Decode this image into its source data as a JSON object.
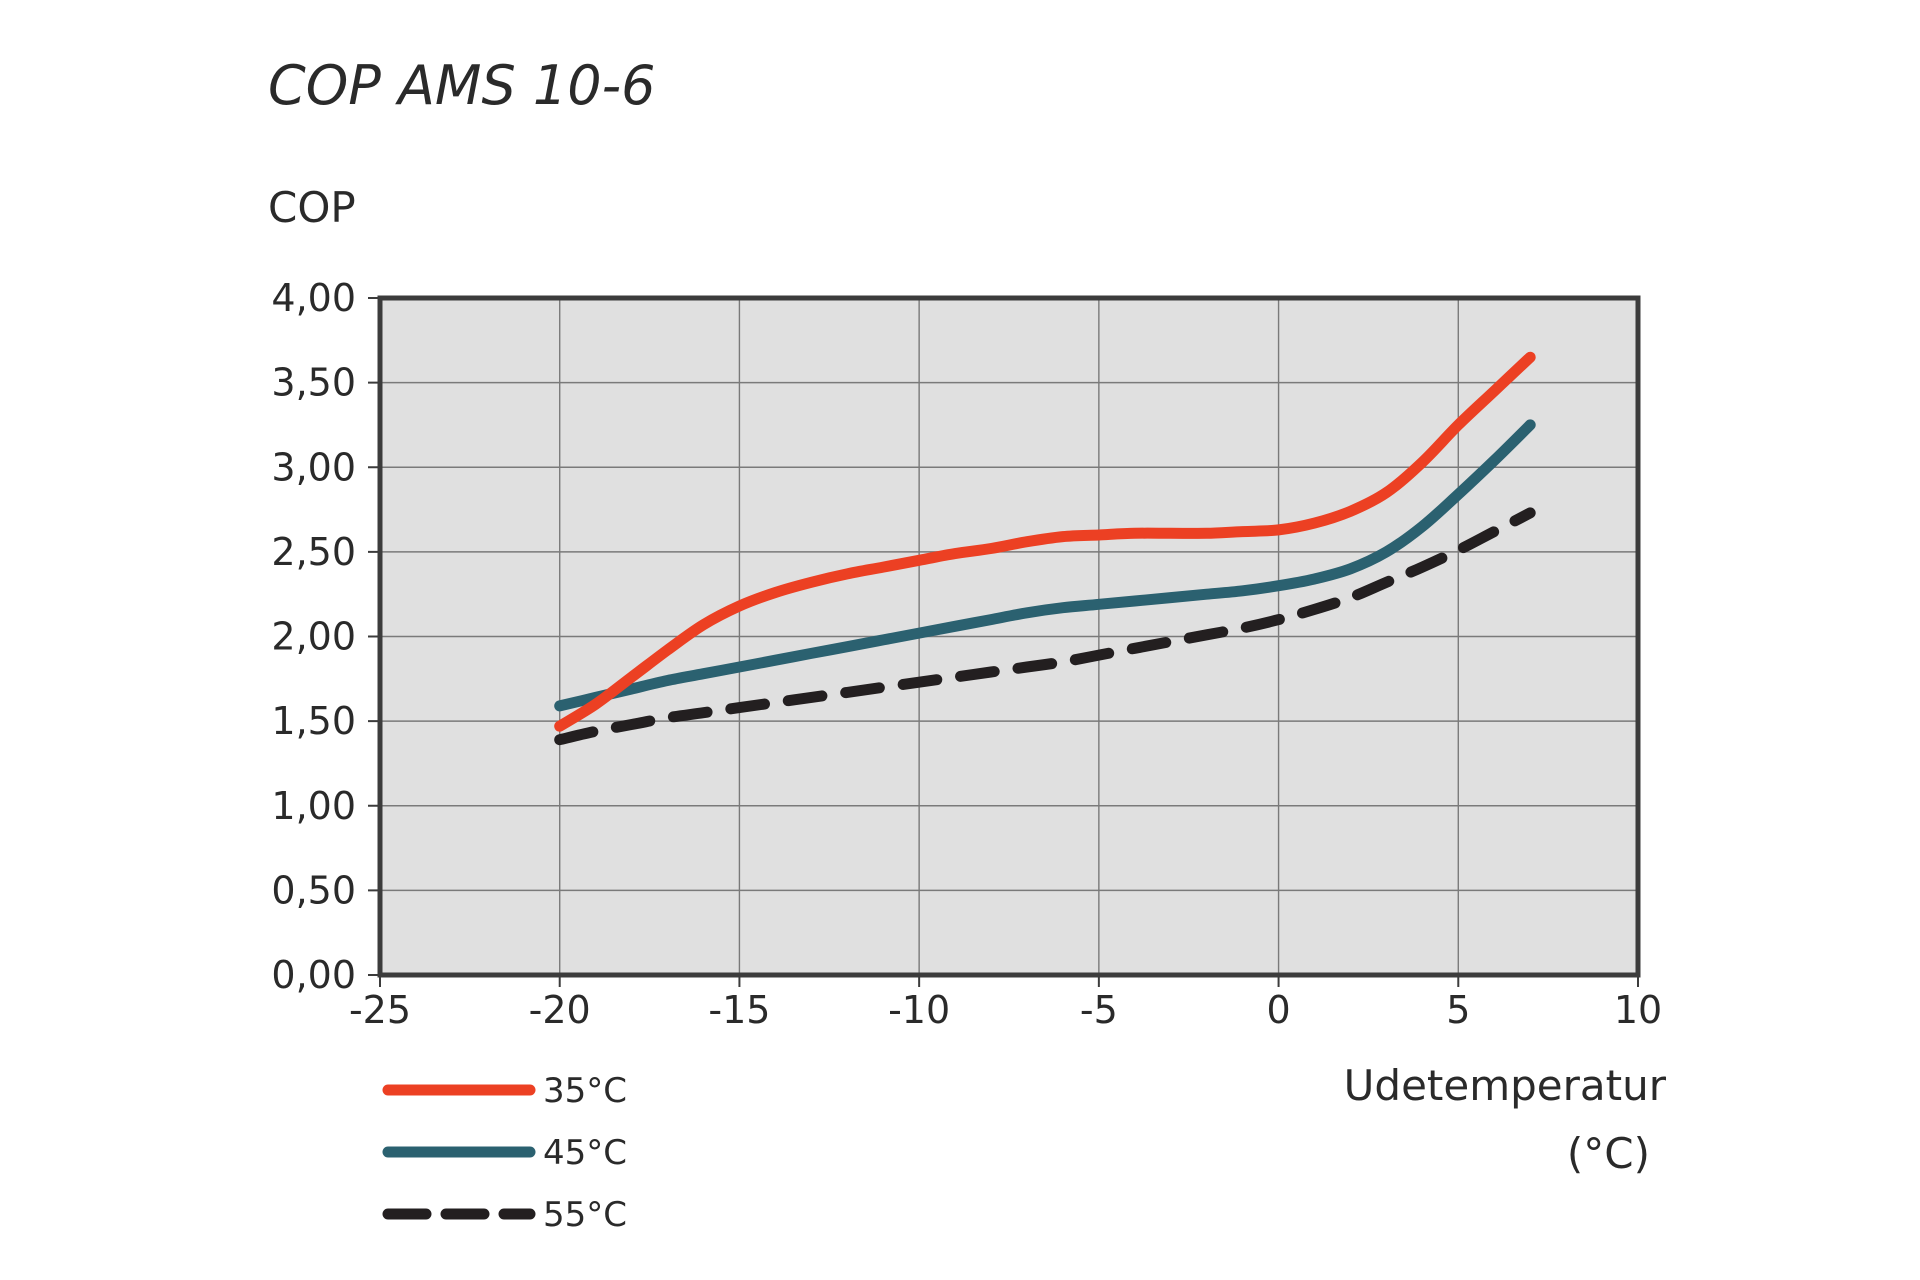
{
  "chart_data": {
    "type": "line",
    "title": "COP AMS 10-6",
    "ylabel": "COP",
    "xlabel_line1": "Udetemperatur",
    "xlabel_line2": "(°C)",
    "xlim": [
      -25,
      10
    ],
    "ylim": [
      0,
      4
    ],
    "xticks": [
      -25,
      -20,
      -15,
      -10,
      -5,
      0,
      5,
      10
    ],
    "xtick_labels": [
      "-25",
      "-20",
      "-15",
      "-10",
      "-5",
      "0",
      "5",
      "10"
    ],
    "yticks": [
      0,
      0.5,
      1,
      1.5,
      2,
      2.5,
      3,
      3.5,
      4
    ],
    "ytick_labels": [
      "0,00",
      "0,50",
      "1,00",
      "1,50",
      "2,00",
      "2,50",
      "3,00",
      "3,50",
      "4,00"
    ],
    "grid": true,
    "plot_background": "#e0e0e0",
    "series": [
      {
        "name": "35°C",
        "color": "#ec4023",
        "style": "solid",
        "x": [
          -20,
          -19,
          -18,
          -17,
          -16,
          -15,
          -14,
          -13,
          -12,
          -11,
          -10,
          -9,
          -8,
          -7,
          -6,
          -5,
          -4,
          -3,
          -2,
          -1,
          0,
          1,
          2,
          3,
          4,
          5,
          6,
          7
        ],
        "y": [
          1.47,
          1.6,
          1.76,
          1.92,
          2.07,
          2.18,
          2.26,
          2.32,
          2.37,
          2.41,
          2.45,
          2.49,
          2.52,
          2.56,
          2.59,
          2.6,
          2.61,
          2.61,
          2.61,
          2.62,
          2.63,
          2.67,
          2.74,
          2.85,
          3.03,
          3.25,
          3.45,
          3.65
        ]
      },
      {
        "name": "45°C",
        "color": "#2b6170",
        "style": "solid",
        "x": [
          -20,
          -19,
          -18,
          -17,
          -16,
          -15,
          -14,
          -13,
          -12,
          -11,
          -10,
          -9,
          -8,
          -7,
          -6,
          -5,
          -4,
          -3,
          -2,
          -1,
          0,
          1,
          2,
          3,
          4,
          5,
          6,
          7
        ],
        "y": [
          1.59,
          1.64,
          1.69,
          1.74,
          1.78,
          1.82,
          1.86,
          1.9,
          1.94,
          1.98,
          2.02,
          2.06,
          2.1,
          2.14,
          2.17,
          2.19,
          2.21,
          2.23,
          2.25,
          2.27,
          2.3,
          2.34,
          2.4,
          2.5,
          2.65,
          2.84,
          3.04,
          3.25
        ]
      },
      {
        "name": "55°C",
        "color": "#231f20",
        "style": "dashed",
        "x": [
          -20,
          -19,
          -18,
          -17,
          -16,
          -15,
          -14,
          -13,
          -12,
          -11,
          -10,
          -9,
          -8,
          -7,
          -6,
          -5,
          -4,
          -3,
          -2,
          -1,
          0,
          1,
          2,
          3,
          4,
          5,
          6,
          7
        ],
        "y": [
          1.39,
          1.44,
          1.48,
          1.52,
          1.55,
          1.58,
          1.61,
          1.64,
          1.67,
          1.7,
          1.73,
          1.76,
          1.79,
          1.82,
          1.85,
          1.89,
          1.93,
          1.97,
          2.01,
          2.05,
          2.1,
          2.16,
          2.23,
          2.32,
          2.41,
          2.51,
          2.62,
          2.73
        ]
      }
    ]
  }
}
